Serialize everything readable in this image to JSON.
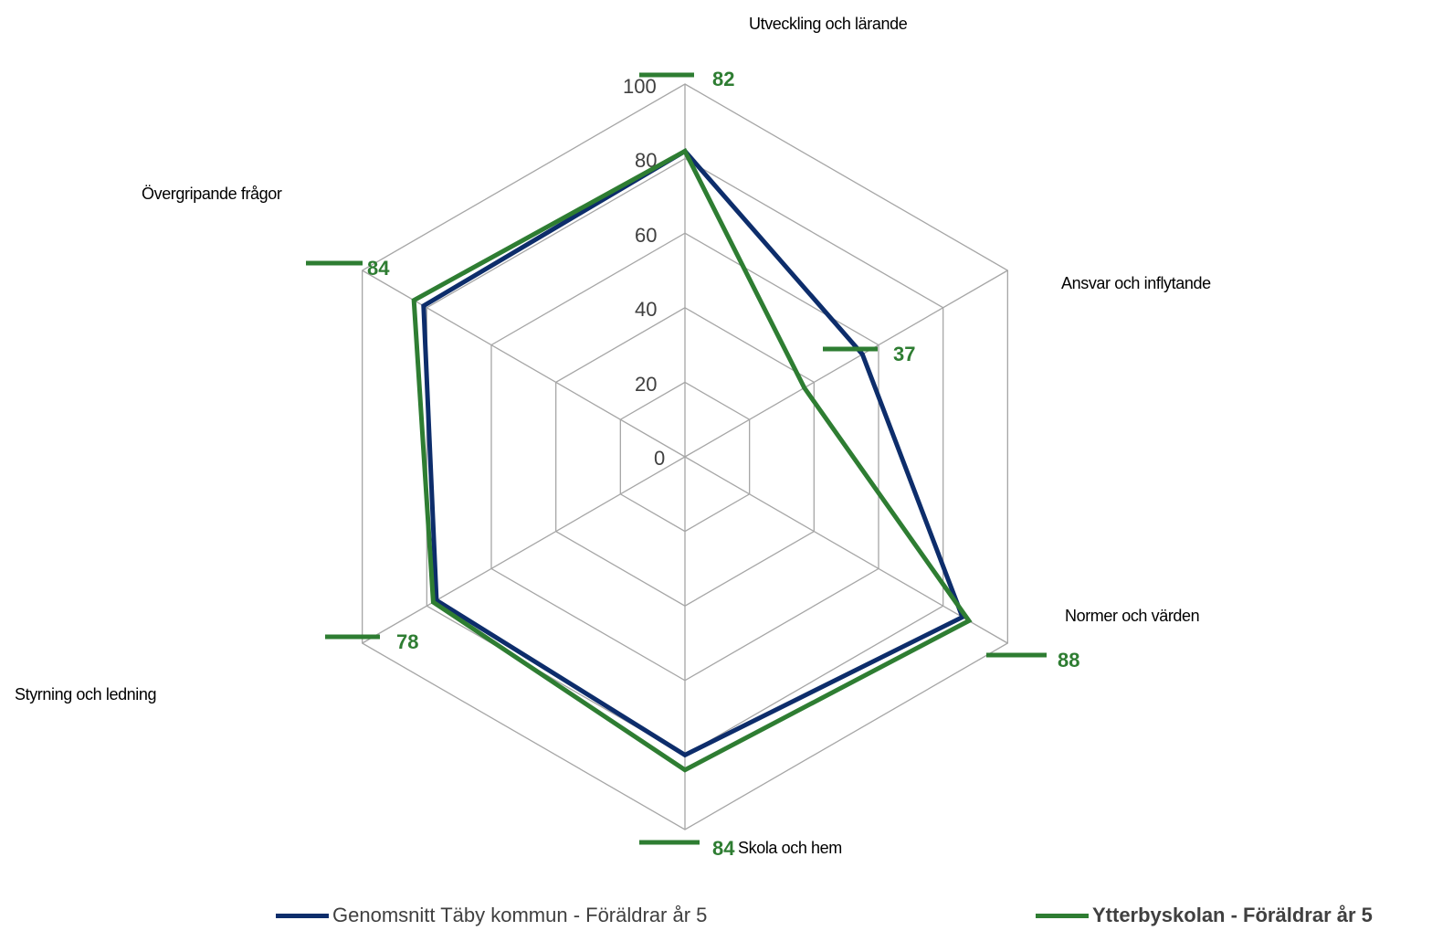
{
  "chart_data": {
    "type": "radar",
    "categories": [
      "Utveckling och lärande",
      "Ansvar och inflytande",
      "Normer och värden",
      "Skola och hem",
      "Styrning och ledning",
      "Övergripande frågor"
    ],
    "rticks": [
      "0",
      "20",
      "40",
      "60",
      "80",
      "100"
    ],
    "rlim": [
      0,
      100
    ],
    "grid": true,
    "legend": "bottom",
    "series": [
      {
        "name": "Genomsnitt Täby kommun - Föräldrar år 5",
        "values": [
          82,
          55,
          86,
          80,
          77,
          81
        ],
        "color": "#0d2d6b"
      },
      {
        "name": "Ytterbyskolan - Föräldrar år 5",
        "values": [
          82,
          37,
          88,
          84,
          78,
          84
        ],
        "color": "#2e7d32"
      }
    ],
    "data_labels": [
      "82",
      "37",
      "88",
      "84",
      "78",
      "84"
    ]
  }
}
